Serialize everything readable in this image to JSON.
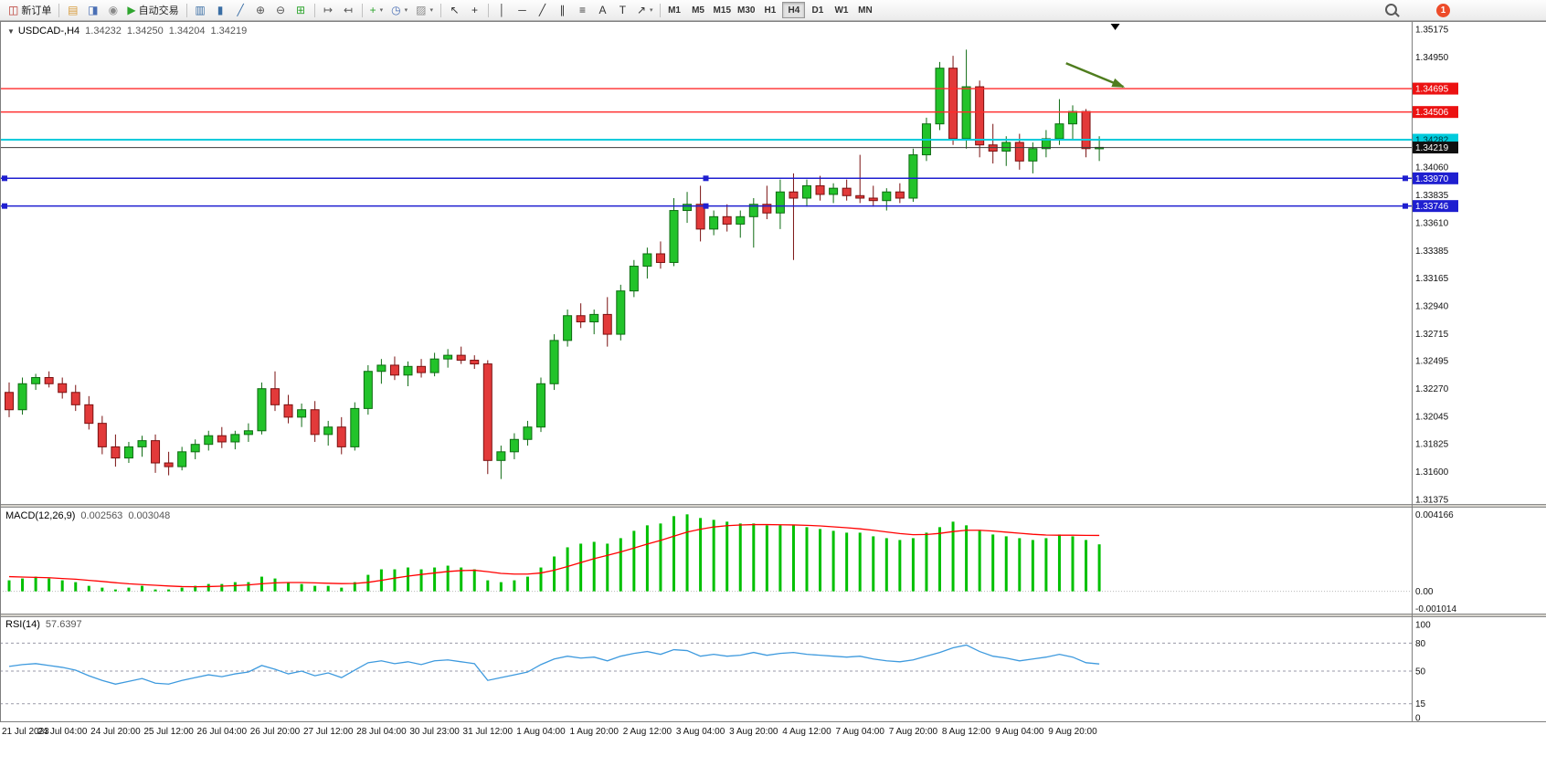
{
  "toolbar": {
    "notification_count": "1",
    "timeframes": [
      "M1",
      "M5",
      "M15",
      "M30",
      "H1",
      "H4",
      "D1",
      "W1",
      "MN"
    ],
    "active_timeframe": "H4",
    "groups": [
      {
        "items": [
          {
            "name": "new-order-button",
            "icon": "new-order-icon",
            "glyph": "◫",
            "color": "#b8342c",
            "label": "新订单"
          }
        ]
      },
      {
        "items": [
          {
            "name": "charts-button",
            "icon": "charts-icon",
            "glyph": "▤",
            "color": "#d79b3a"
          },
          {
            "name": "profiles-button",
            "icon": "profiles-icon",
            "glyph": "◨",
            "color": "#4a6fb5"
          },
          {
            "name": "data-window-button",
            "icon": "data-window-icon",
            "glyph": "◉",
            "color": "#8a8a8a"
          },
          {
            "name": "autotrading-button",
            "icon": "autotrading-icon",
            "glyph": "▶",
            "color": "#2ea52e",
            "label": "自动交易"
          }
        ]
      },
      {
        "items": [
          {
            "name": "bar-chart-button",
            "icon": "bar-chart-icon",
            "glyph": "▥",
            "color": "#3a6ea5"
          },
          {
            "name": "candlestick-button",
            "icon": "candlestick-icon",
            "glyph": "▮",
            "color": "#3a6ea5"
          },
          {
            "name": "line-chart-button",
            "icon": "line-chart-icon",
            "glyph": "╱",
            "color": "#3a6ea5"
          },
          {
            "name": "zoom-in-button",
            "icon": "zoom-in-icon",
            "glyph": "⊕",
            "color": "#555555"
          },
          {
            "name": "zoom-out-button",
            "icon": "zoom-out-icon",
            "glyph": "⊖",
            "color": "#555555"
          },
          {
            "name": "tile-windows-button",
            "icon": "tile-windows-icon",
            "glyph": "⊞",
            "color": "#2ea52e"
          }
        ]
      },
      {
        "items": [
          {
            "name": "auto-scroll-button",
            "icon": "auto-scroll-icon",
            "glyph": "↦",
            "color": "#555555"
          },
          {
            "name": "chart-shift-button",
            "icon": "chart-shift-icon",
            "glyph": "↤",
            "color": "#555555"
          }
        ]
      },
      {
        "items": [
          {
            "name": "indicators-button",
            "icon": "indicators-icon",
            "glyph": "+",
            "color": "#2ea52e",
            "dropdown": true
          },
          {
            "name": "periods-button",
            "icon": "periods-icon",
            "glyph": "◷",
            "color": "#4a6fb5",
            "dropdown": true
          },
          {
            "name": "templates-button",
            "icon": "templates-icon",
            "glyph": "▨",
            "color": "#8a8a8a",
            "dropdown": true
          }
        ]
      },
      {
        "items": [
          {
            "name": "cursor-button",
            "icon": "cursor-icon",
            "glyph": "↖",
            "color": "#333333"
          },
          {
            "name": "crosshair-button",
            "icon": "crosshair-icon",
            "glyph": "+",
            "color": "#333333"
          }
        ]
      },
      {
        "items": [
          {
            "name": "vertical-line-button",
            "icon": "vertical-line-icon",
            "glyph": "│",
            "color": "#333333"
          },
          {
            "name": "horizontal-line-button",
            "icon": "horizontal-line-icon",
            "glyph": "─",
            "color": "#333333"
          },
          {
            "name": "trendline-button",
            "icon": "trendline-icon",
            "glyph": "╱",
            "color": "#333333"
          },
          {
            "name": "channel-button",
            "icon": "channel-icon",
            "glyph": "∥",
            "color": "#333333"
          },
          {
            "name": "fibonacci-button",
            "icon": "fibonacci-icon",
            "glyph": "≡",
            "color": "#333333"
          },
          {
            "name": "text-button",
            "icon": "text-icon",
            "glyph": "A",
            "color": "#333333"
          },
          {
            "name": "text-label-button",
            "icon": "text-label-icon",
            "glyph": "T",
            "color": "#333333"
          },
          {
            "name": "arrows-button",
            "icon": "arrows-tool-icon",
            "glyph": "↗",
            "color": "#333333",
            "dropdown": true
          }
        ]
      }
    ]
  },
  "chart_data": {
    "type": "candlestick",
    "symbol": "USDCAD",
    "timeframe": "H4",
    "grid": false,
    "header": {
      "symbol": "USDCAD-,H4",
      "open": "1.34232",
      "high": "1.34250",
      "low": "1.34204",
      "close": "1.34219"
    },
    "colors": {
      "up": "#22c32a",
      "up_border": "#0e6b12",
      "down": "#e23a3a",
      "down_border": "#7a1010",
      "macd_histogram": "#00c000",
      "macd_signal": "#ff0000",
      "rsi_line": "#3e9ade",
      "background": "#ffffff"
    },
    "y_axis": {
      "min": 1.31375,
      "max": 1.35175,
      "ticks": [
        "1.35175",
        "1.34950",
        "1.34060",
        "1.33835",
        "1.33610",
        "1.33385",
        "1.33165",
        "1.32940",
        "1.32715",
        "1.32495",
        "1.32270",
        "1.32045",
        "1.31825",
        "1.31600",
        "1.31375"
      ]
    },
    "x_labels": [
      "21 Jul 2023",
      "24 Jul 04:00",
      "24 Jul 20:00",
      "25 Jul 12:00",
      "26 Jul 04:00",
      "26 Jul 20:00",
      "27 Jul 12:00",
      "28 Jul 04:00",
      "30 Jul 23:00",
      "31 Jul 12:00",
      "1 Aug 04:00",
      "1 Aug 20:00",
      "2 Aug 12:00",
      "3 Aug 04:00",
      "3 Aug 20:00",
      "4 Aug 12:00",
      "7 Aug 04:00",
      "7 Aug 20:00",
      "8 Aug 12:00",
      "9 Aug 04:00",
      "9 Aug 20:00"
    ],
    "candles_per_label": 4,
    "candles": [
      [
        1.3224,
        1.3232,
        1.3204,
        1.321
      ],
      [
        1.321,
        1.3236,
        1.3206,
        1.3231
      ],
      [
        1.3231,
        1.3239,
        1.3226,
        1.3236
      ],
      [
        1.3236,
        1.3241,
        1.3228,
        1.3231
      ],
      [
        1.3231,
        1.3236,
        1.3219,
        1.3224
      ],
      [
        1.3224,
        1.323,
        1.3209,
        1.3214
      ],
      [
        1.3214,
        1.3221,
        1.3194,
        1.3199
      ],
      [
        1.3199,
        1.3205,
        1.3174,
        1.318
      ],
      [
        1.318,
        1.319,
        1.3164,
        1.3171
      ],
      [
        1.3171,
        1.3184,
        1.3167,
        1.318
      ],
      [
        1.318,
        1.3189,
        1.3172,
        1.3185
      ],
      [
        1.3185,
        1.319,
        1.3159,
        1.3167
      ],
      [
        1.3167,
        1.3176,
        1.3157,
        1.3164
      ],
      [
        1.3164,
        1.318,
        1.3161,
        1.3176
      ],
      [
        1.3176,
        1.3186,
        1.317,
        1.3182
      ],
      [
        1.3182,
        1.3193,
        1.3177,
        1.3189
      ],
      [
        1.3189,
        1.3196,
        1.3179,
        1.3184
      ],
      [
        1.3184,
        1.3193,
        1.3178,
        1.319
      ],
      [
        1.319,
        1.3199,
        1.3184,
        1.3193
      ],
      [
        1.3193,
        1.3232,
        1.319,
        1.3227
      ],
      [
        1.3227,
        1.3241,
        1.3209,
        1.3214
      ],
      [
        1.3214,
        1.3222,
        1.3199,
        1.3204
      ],
      [
        1.3204,
        1.3215,
        1.3196,
        1.321
      ],
      [
        1.321,
        1.3217,
        1.3184,
        1.319
      ],
      [
        1.319,
        1.3201,
        1.3181,
        1.3196
      ],
      [
        1.3196,
        1.3204,
        1.3174,
        1.318
      ],
      [
        1.318,
        1.3216,
        1.3177,
        1.3211
      ],
      [
        1.3211,
        1.3246,
        1.3206,
        1.3241
      ],
      [
        1.3241,
        1.3251,
        1.3231,
        1.3246
      ],
      [
        1.3246,
        1.3253,
        1.3234,
        1.3238
      ],
      [
        1.3238,
        1.3249,
        1.3229,
        1.3245
      ],
      [
        1.3245,
        1.3251,
        1.3236,
        1.324
      ],
      [
        1.324,
        1.3256,
        1.3237,
        1.3251
      ],
      [
        1.3251,
        1.3259,
        1.3244,
        1.3254
      ],
      [
        1.3254,
        1.3261,
        1.3247,
        1.325
      ],
      [
        1.325,
        1.3254,
        1.3243,
        1.3247
      ],
      [
        1.3247,
        1.325,
        1.3158,
        1.3169
      ],
      [
        1.3169,
        1.3181,
        1.3154,
        1.3176
      ],
      [
        1.3176,
        1.3191,
        1.317,
        1.3186
      ],
      [
        1.3186,
        1.3201,
        1.3181,
        1.3196
      ],
      [
        1.3196,
        1.3236,
        1.3192,
        1.3231
      ],
      [
        1.3231,
        1.3271,
        1.3226,
        1.3266
      ],
      [
        1.3266,
        1.3291,
        1.3261,
        1.3286
      ],
      [
        1.3286,
        1.3296,
        1.3276,
        1.3281
      ],
      [
        1.3281,
        1.3291,
        1.3271,
        1.3287
      ],
      [
        1.3287,
        1.3301,
        1.3261,
        1.3271
      ],
      [
        1.3271,
        1.3311,
        1.3266,
        1.3306
      ],
      [
        1.3306,
        1.3331,
        1.3301,
        1.3326
      ],
      [
        1.3326,
        1.3341,
        1.3316,
        1.3336
      ],
      [
        1.3336,
        1.3346,
        1.3324,
        1.3329
      ],
      [
        1.3329,
        1.3381,
        1.3326,
        1.3371
      ],
      [
        1.3371,
        1.3386,
        1.3361,
        1.3376
      ],
      [
        1.3376,
        1.3391,
        1.3346,
        1.3356
      ],
      [
        1.3356,
        1.3371,
        1.3351,
        1.3366
      ],
      [
        1.3366,
        1.3376,
        1.3354,
        1.336
      ],
      [
        1.336,
        1.3371,
        1.3349,
        1.3366
      ],
      [
        1.3366,
        1.3381,
        1.3341,
        1.3376
      ],
      [
        1.3376,
        1.3391,
        1.3364,
        1.3369
      ],
      [
        1.3369,
        1.3396,
        1.3356,
        1.3386
      ],
      [
        1.3386,
        1.3401,
        1.3331,
        1.3381
      ],
      [
        1.3381,
        1.3396,
        1.3374,
        1.3391
      ],
      [
        1.3391,
        1.3399,
        1.3379,
        1.3384
      ],
      [
        1.3384,
        1.3393,
        1.3377,
        1.3389
      ],
      [
        1.3389,
        1.3396,
        1.3379,
        1.3383
      ],
      [
        1.3383,
        1.3416,
        1.3377,
        1.3381
      ],
      [
        1.3381,
        1.3391,
        1.3374,
        1.3379
      ],
      [
        1.3379,
        1.3389,
        1.3371,
        1.3386
      ],
      [
        1.3386,
        1.3393,
        1.3377,
        1.3381
      ],
      [
        1.3381,
        1.3421,
        1.3378,
        1.3416
      ],
      [
        1.3416,
        1.3446,
        1.3411,
        1.3441
      ],
      [
        1.3441,
        1.3491,
        1.3436,
        1.3486
      ],
      [
        1.3486,
        1.3496,
        1.3424,
        1.3429
      ],
      [
        1.3429,
        1.3501,
        1.3421,
        1.3471
      ],
      [
        1.3471,
        1.3476,
        1.3414,
        1.3424
      ],
      [
        1.3424,
        1.3441,
        1.3409,
        1.3419
      ],
      [
        1.3419,
        1.3431,
        1.3407,
        1.3426
      ],
      [
        1.3426,
        1.3433,
        1.3404,
        1.3411
      ],
      [
        1.3411,
        1.3426,
        1.3401,
        1.3421
      ],
      [
        1.3421,
        1.3436,
        1.3414,
        1.3429
      ],
      [
        1.3429,
        1.3461,
        1.3424,
        1.3441
      ],
      [
        1.3441,
        1.3456,
        1.3429,
        1.3451
      ],
      [
        1.3451,
        1.3453,
        1.3414,
        1.3421
      ],
      [
        1.3421,
        1.3431,
        1.3411,
        1.3422
      ]
    ],
    "h_lines": [
      {
        "name": "resistance-line-1",
        "price": 1.34695,
        "label": "1.34695",
        "line_color": "#ff2a2a",
        "badge_color": "#ec1212",
        "text_color": "#ffffff",
        "width": 1.3,
        "style": "solid",
        "handles": false
      },
      {
        "name": "resistance-line-2",
        "price": 1.34506,
        "label": "1.34506",
        "line_color": "#ff2a2a",
        "badge_color": "#ec1212",
        "text_color": "#ffffff",
        "width": 1.3,
        "style": "solid",
        "handles": false
      },
      {
        "name": "level-line-cyan",
        "price": 1.34282,
        "label": "1.34282",
        "line_color": "#00cbdc",
        "badge_color": "#00cbdc",
        "text_color": "#00333a",
        "width": 2,
        "style": "solid",
        "handles": false
      },
      {
        "name": "current-price-line",
        "price": 1.34219,
        "label": "1.34219",
        "line_color": "#3c3c3c",
        "badge_color": "#101010",
        "text_color": "#ffffff",
        "width": 1,
        "style": "solid",
        "handles": false
      },
      {
        "name": "support-line-1",
        "price": 1.3397,
        "label": "1.33970",
        "line_color": "#1f1fd0",
        "badge_color": "#1f1fd0",
        "text_color": "#ffffff",
        "width": 1.5,
        "style": "solid",
        "handles": true
      },
      {
        "name": "support-line-2",
        "price": 1.33746,
        "label": "1.33746",
        "line_color": "#1f1fd0",
        "badge_color": "#1f1fd0",
        "text_color": "#ffffff",
        "width": 1.5,
        "style": "solid",
        "handles": true
      }
    ],
    "arrow_annotation": {
      "from_candle": 79.5,
      "from_price": 1.349,
      "to_candle": 83.8,
      "to_price": 1.3471,
      "color": "#4f7d1e"
    },
    "top_marker": {
      "x_candle": 83.2,
      "color": "#000000"
    },
    "macd": {
      "label": "MACD(12,26,9)",
      "value_main": "0.002563",
      "value_signal": "0.003048",
      "scale": {
        "max": 0.004166,
        "min": -0.001014,
        "labels": [
          "0.004166",
          "0.00",
          "-0.001014"
        ]
      },
      "histogram": [
        0.0006,
        0.0007,
        0.0008,
        0.0007,
        0.0006,
        0.0005,
        0.0003,
        0.0002,
        0.0001,
        0.0002,
        0.0003,
        0.0001,
        0.0001,
        0.0002,
        0.0003,
        0.0004,
        0.0004,
        0.0005,
        0.0005,
        0.0008,
        0.0007,
        0.0005,
        0.0004,
        0.0003,
        0.0003,
        0.0002,
        0.0005,
        0.0009,
        0.0012,
        0.0012,
        0.0013,
        0.0012,
        0.0013,
        0.0014,
        0.0013,
        0.0012,
        0.0006,
        0.0005,
        0.0006,
        0.0008,
        0.0013,
        0.0019,
        0.0024,
        0.0026,
        0.0027,
        0.0026,
        0.0029,
        0.0033,
        0.0036,
        0.0037,
        0.0041,
        0.0042,
        0.004,
        0.0039,
        0.0038,
        0.0037,
        0.0037,
        0.0036,
        0.0036,
        0.0036,
        0.0035,
        0.0034,
        0.0033,
        0.0032,
        0.0032,
        0.003,
        0.0029,
        0.0028,
        0.0029,
        0.0032,
        0.0035,
        0.0038,
        0.0036,
        0.0033,
        0.0031,
        0.003,
        0.0029,
        0.0028,
        0.0029,
        0.0031,
        0.003,
        0.0028,
        0.002563
      ],
      "signal": [
        0.0008,
        0.00078,
        0.00076,
        0.00074,
        0.0007,
        0.00066,
        0.0006,
        0.00054,
        0.00047,
        0.00041,
        0.00037,
        0.00033,
        0.00029,
        0.00026,
        0.00025,
        0.00026,
        0.00028,
        0.00031,
        0.00035,
        0.00041,
        0.00046,
        0.00048,
        0.00048,
        0.00046,
        0.00044,
        0.00042,
        0.00043,
        0.00049,
        0.0006,
        0.00072,
        0.00083,
        0.00092,
        0.001,
        0.00108,
        0.00113,
        0.00115,
        0.00107,
        0.00098,
        0.00094,
        0.00094,
        0.001,
        0.00115,
        0.00135,
        0.00157,
        0.00178,
        0.00196,
        0.00215,
        0.00236,
        0.00258,
        0.00278,
        0.00301,
        0.00323,
        0.00339,
        0.00351,
        0.00358,
        0.00362,
        0.00364,
        0.00364,
        0.00363,
        0.00362,
        0.0036,
        0.00357,
        0.00352,
        0.00347,
        0.00341,
        0.00333,
        0.00324,
        0.00315,
        0.00309,
        0.0031,
        0.00316,
        0.00326,
        0.00333,
        0.00333,
        0.00329,
        0.00323,
        0.00317,
        0.00311,
        0.00307,
        0.00306,
        0.00306,
        0.00305,
        0.003048
      ]
    },
    "rsi": {
      "label": "RSI(14)",
      "value": "57.6397",
      "range": [
        0,
        100
      ],
      "scale_labels": [
        "100",
        "80",
        "50",
        "15",
        "0"
      ],
      "levels": [
        80,
        50,
        15
      ],
      "values": [
        55,
        57,
        58,
        56,
        54,
        51,
        45,
        40,
        36,
        39,
        42,
        37,
        36,
        40,
        43,
        46,
        44,
        47,
        49,
        56,
        52,
        47,
        50,
        45,
        48,
        43,
        51,
        59,
        61,
        58,
        60,
        57,
        61,
        62,
        60,
        58,
        40,
        43,
        46,
        49,
        57,
        63,
        66,
        64,
        65,
        61,
        66,
        69,
        71,
        68,
        73,
        72,
        66,
        68,
        66,
        67,
        70,
        67,
        69,
        70,
        68,
        67,
        66,
        65,
        66,
        63,
        61,
        60,
        62,
        66,
        70,
        75,
        78,
        71,
        66,
        64,
        61,
        63,
        65,
        68,
        65,
        59,
        57.64
      ]
    }
  }
}
